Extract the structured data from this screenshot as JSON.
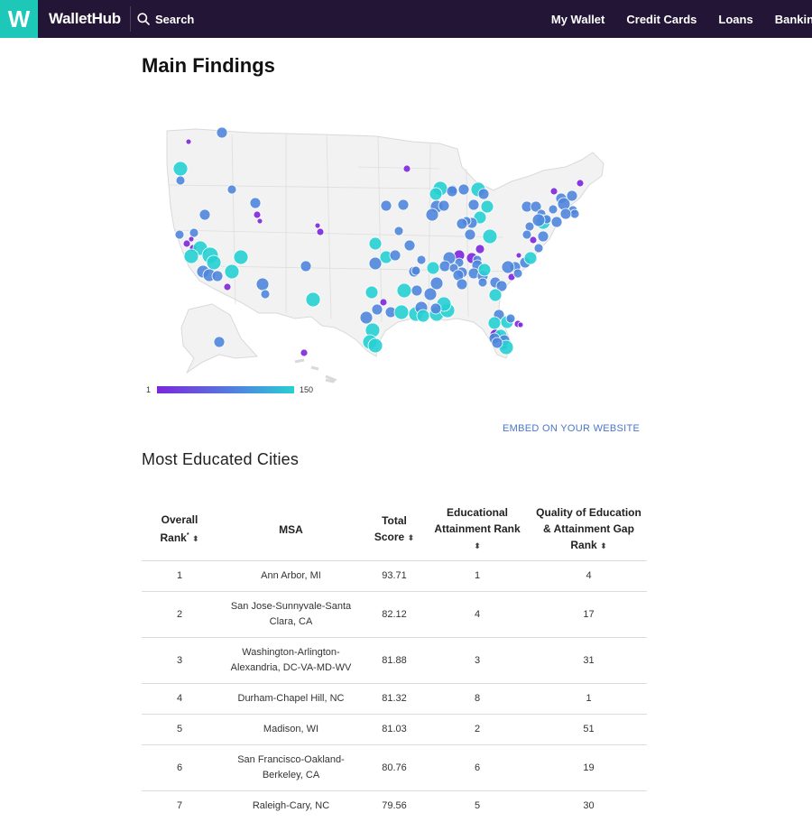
{
  "header": {
    "logo_letter": "W",
    "brand": "WalletHub",
    "search_label": "Search",
    "nav": [
      "My Wallet",
      "Credit Cards",
      "Loans",
      "Banking"
    ]
  },
  "page": {
    "title": "Main Findings",
    "embed_label": "EMBED ON YOUR WEBSITE",
    "section_title": "Most Educated Cities"
  },
  "map": {
    "legend_min": "1",
    "legend_max": "150",
    "colors": {
      "low": "#7c26dc",
      "mid": "#4f86dd",
      "high": "#26d0d3",
      "land": "#f2f2f2",
      "border": "#d9d9d9"
    }
  },
  "table": {
    "headers": {
      "overall_rank": "Overall Rank",
      "overall_rank_mark": "*",
      "msa": "MSA",
      "total_score": "Total Score",
      "edu_attainment": "Educational Attainment Rank",
      "quality_gap": "Quality of Education & Attainment Gap Rank",
      "sort_glyph": "⬍"
    },
    "rows": [
      {
        "rank": "1",
        "msa": "Ann Arbor, MI",
        "score": "93.71",
        "edu": "1",
        "quality": "4"
      },
      {
        "rank": "2",
        "msa": "San Jose-Sunnyvale-Santa Clara, CA",
        "score": "82.12",
        "edu": "4",
        "quality": "17"
      },
      {
        "rank": "3",
        "msa": "Washington-Arlington-Alexandria, DC-VA-MD-WV",
        "score": "81.88",
        "edu": "3",
        "quality": "31"
      },
      {
        "rank": "4",
        "msa": "Durham-Chapel Hill, NC",
        "score": "81.32",
        "edu": "8",
        "quality": "1"
      },
      {
        "rank": "5",
        "msa": "Madison, WI",
        "score": "81.03",
        "edu": "2",
        "quality": "51"
      },
      {
        "rank": "6",
        "msa": "San Francisco-Oakland-Berkeley, CA",
        "score": "80.76",
        "edu": "6",
        "quality": "19"
      },
      {
        "rank": "7",
        "msa": "Raleigh-Cary, NC",
        "score": "79.56",
        "edu": "5",
        "quality": "30"
      }
    ]
  }
}
